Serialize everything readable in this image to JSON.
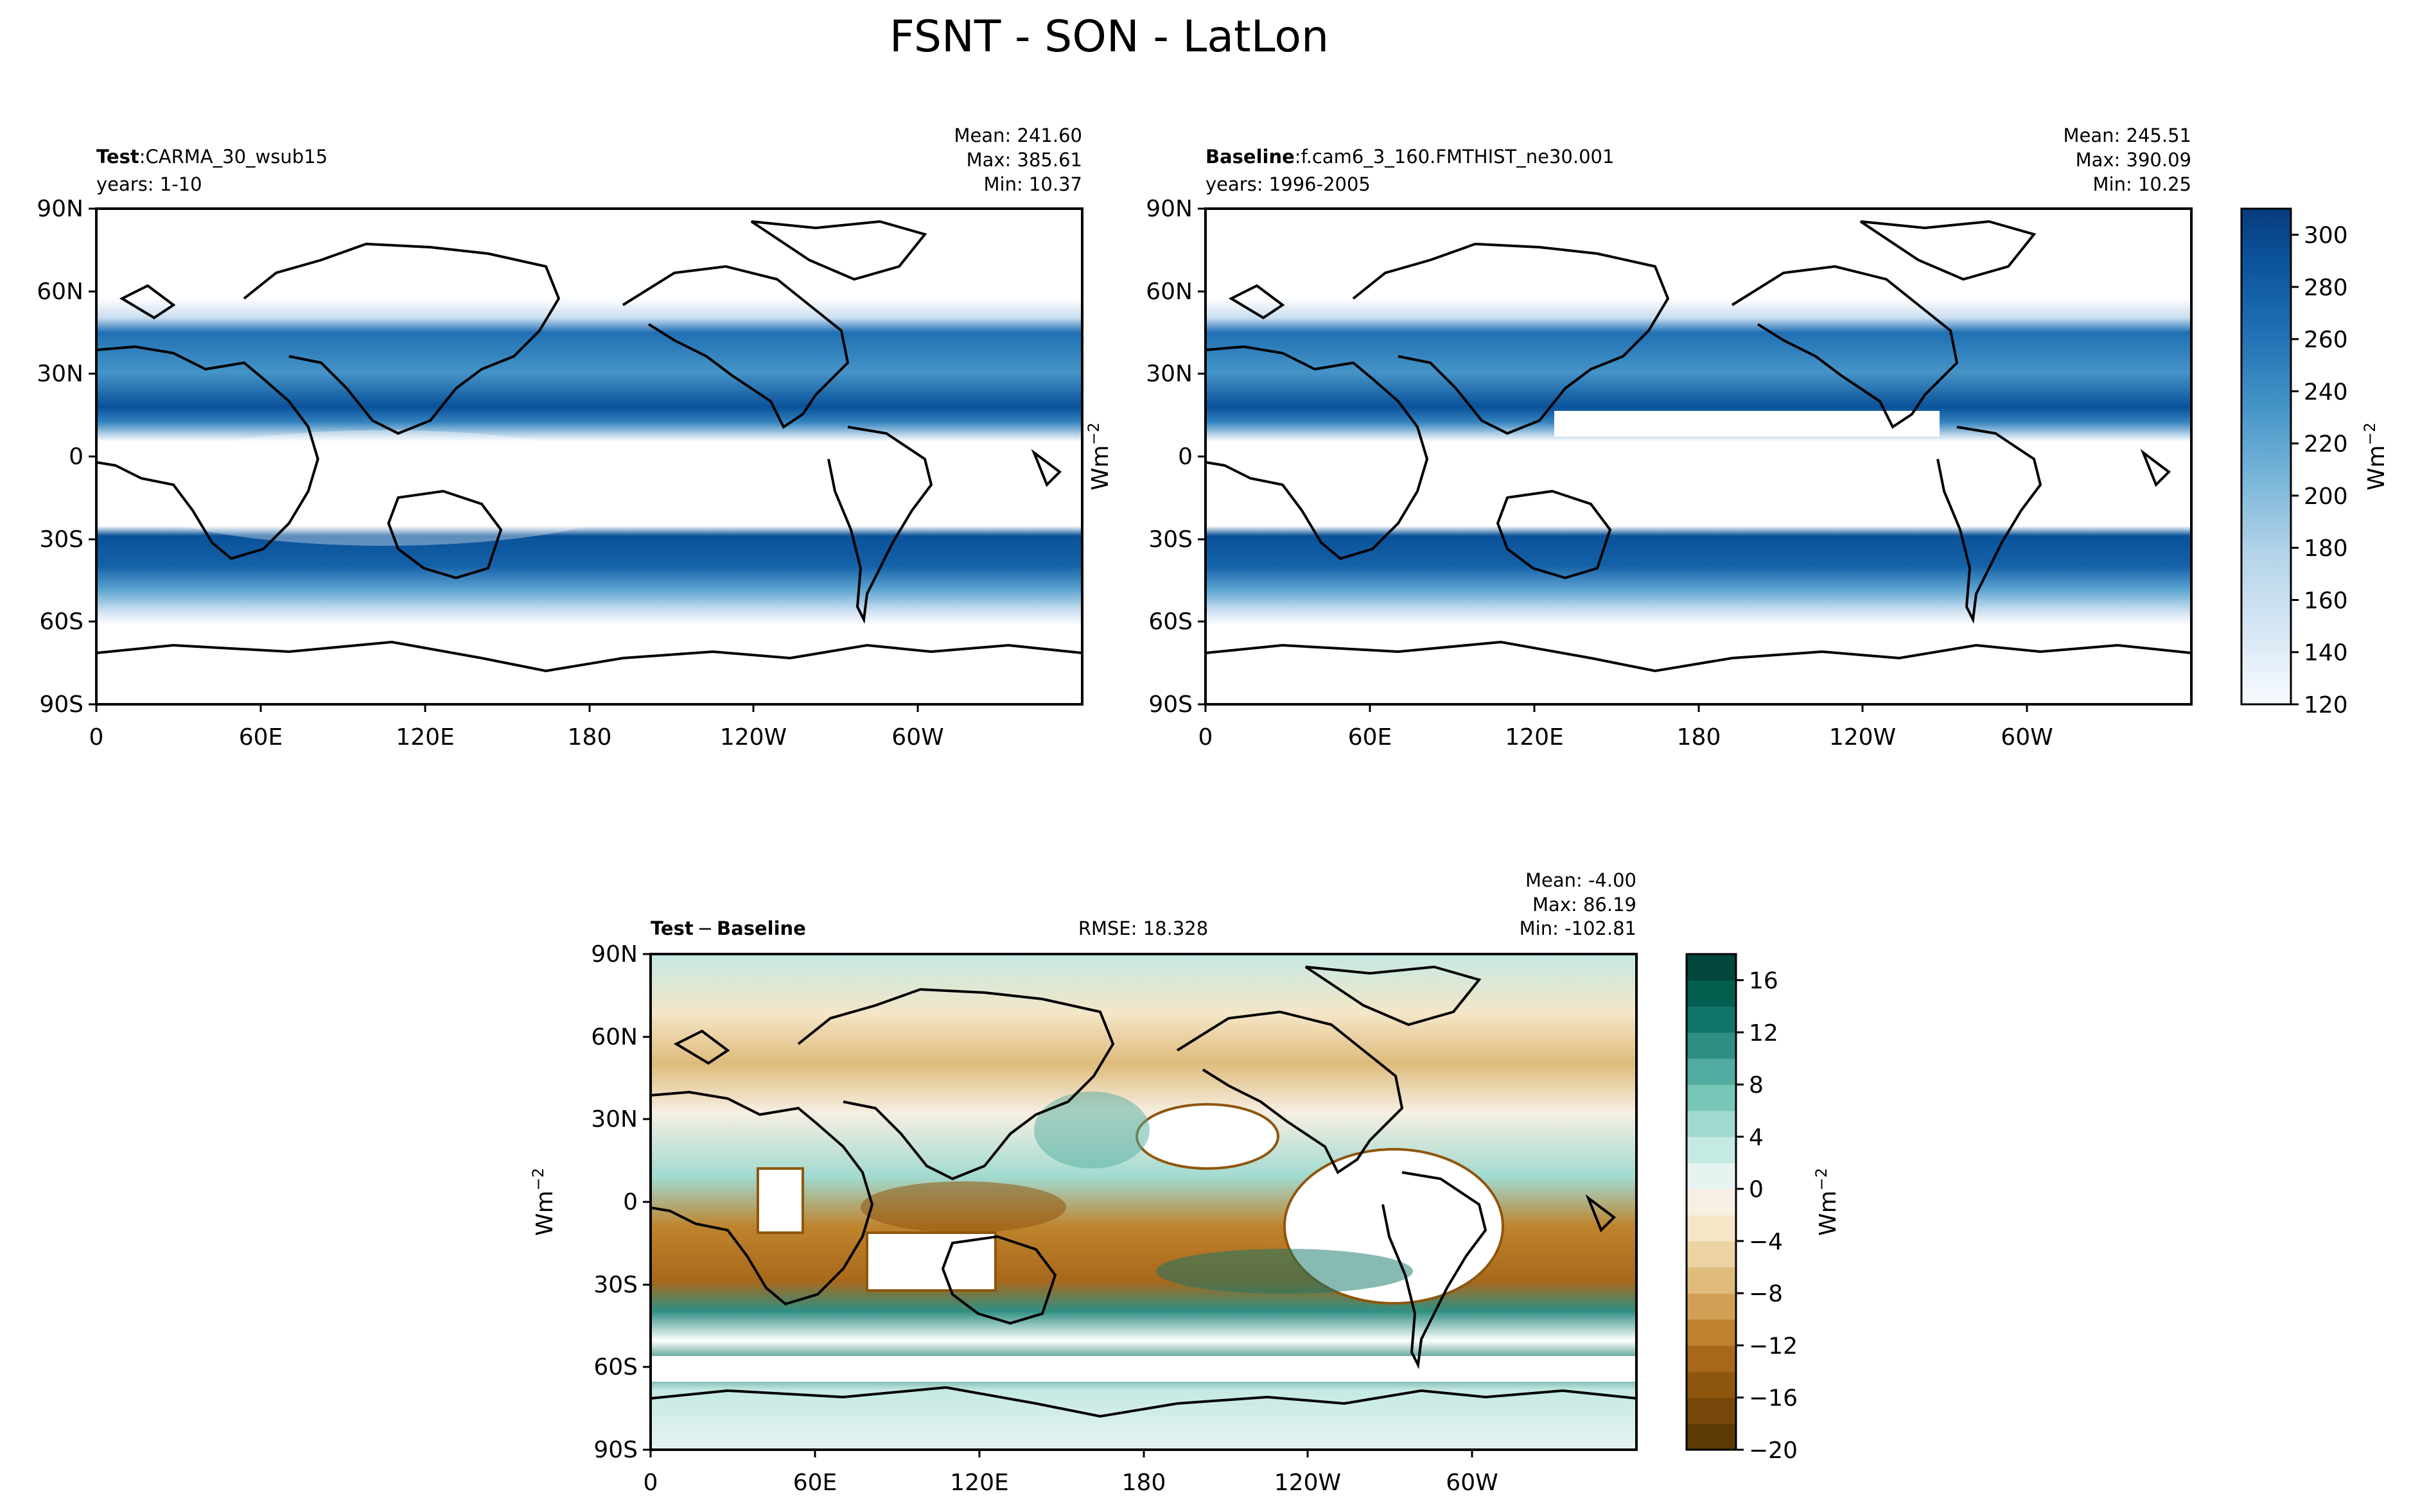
{
  "figure": {
    "title": "FSNT - SON - LatLon"
  },
  "chart_data": [
    {
      "type": "heatmap",
      "panel": "test",
      "label_bold": "Test",
      "label_sep": ":",
      "case": "CARMA_30_wsub15",
      "years": "years: 1-10",
      "stats": {
        "mean": "Mean: 241.60",
        "max": "Max: 385.61",
        "min": "Min: 10.37"
      },
      "lat_ticks": [
        "90N",
        "60N",
        "30N",
        "0",
        "30S",
        "60S",
        "90S"
      ],
      "lon_ticks": [
        "0",
        "60E",
        "120E",
        "180",
        "120W",
        "60W"
      ],
      "xlim": [
        0,
        360
      ],
      "ylim": [
        -90,
        90
      ],
      "colormap": "Blues",
      "clim": [
        120,
        310
      ],
      "mask_above": 310,
      "mask_below": 120
    },
    {
      "type": "heatmap",
      "panel": "baseline",
      "label_bold": "Baseline",
      "label_sep": ":",
      "case": "f.cam6_3_160.FMTHIST_ne30.001",
      "years": "years: 1996-2005",
      "stats": {
        "mean": "Mean: 245.51",
        "max": "Max: 390.09",
        "min": "Min: 10.25"
      },
      "ylabel": "Wm",
      "ylabel_sup": "−2",
      "lat_ticks": [
        "90N",
        "60N",
        "30N",
        "0",
        "30S",
        "60S",
        "90S"
      ],
      "lon_ticks": [
        "0",
        "60E",
        "120E",
        "180",
        "120W",
        "60W"
      ],
      "xlim": [
        0,
        360
      ],
      "ylim": [
        -90,
        90
      ],
      "colormap": "Blues",
      "clim": [
        120,
        310
      ],
      "mask_above": 310,
      "mask_below": 120
    },
    {
      "type": "heatmap",
      "panel": "diff",
      "label_bold_a": "Test",
      "label_minus": "−",
      "label_bold_b": "Baseline",
      "rmse": "RMSE: 18.328",
      "stats": {
        "mean": "Mean: -4.00",
        "max": "Max: 86.19",
        "min": "Min: -102.81"
      },
      "ylabel": "Wm",
      "ylabel_sup": "−2",
      "lat_ticks": [
        "90N",
        "60N",
        "30N",
        "0",
        "30S",
        "60S",
        "90S"
      ],
      "lon_ticks": [
        "0",
        "60E",
        "120E",
        "180",
        "120W",
        "60W"
      ],
      "xlim": [
        0,
        360
      ],
      "ylim": [
        -90,
        90
      ],
      "colormap": "BrBG",
      "clim": [
        -20,
        18
      ]
    }
  ],
  "colorbars": {
    "main": {
      "ticks": [
        "300",
        "280",
        "260",
        "240",
        "220",
        "200",
        "180",
        "160",
        "140",
        "120"
      ],
      "tick_values": [
        300,
        280,
        260,
        240,
        220,
        200,
        180,
        160,
        140,
        120
      ],
      "range": [
        120,
        310
      ],
      "label": "Wm",
      "label_sup": "−2",
      "colors": [
        "#f7fbff",
        "#e8f1fa",
        "#d9e8f5",
        "#cadef0",
        "#b5d4e9",
        "#9ac8e0",
        "#7bb7da",
        "#5fa6d1",
        "#4594c7",
        "#3282be",
        "#2070b4",
        "#1461a8",
        "#0a529a",
        "#08468a",
        "#083b7c"
      ]
    },
    "diff": {
      "ticks": [
        "16",
        "12",
        "8",
        "4",
        "0",
        "−4",
        "−8",
        "−12",
        "−16",
        "−20"
      ],
      "tick_values": [
        16,
        12,
        8,
        4,
        0,
        -4,
        -8,
        -12,
        -16,
        -20
      ],
      "range": [
        -20,
        18
      ],
      "label": "Wm",
      "label_sup": "−2",
      "colors": [
        "#5c3a06",
        "#764709",
        "#8f560d",
        "#a8681b",
        "#bf832d",
        "#d2a055",
        "#dfbb7c",
        "#ebd3a2",
        "#f4e6c7",
        "#f6efe2",
        "#e6f3f1",
        "#c5e9e3",
        "#a1dad0",
        "#78c6b8",
        "#52ada0",
        "#2f8f83",
        "#117569",
        "#035e50",
        "#01473b"
      ]
    }
  },
  "colors": {
    "axis": "#000000",
    "land_outline": "#000000"
  }
}
